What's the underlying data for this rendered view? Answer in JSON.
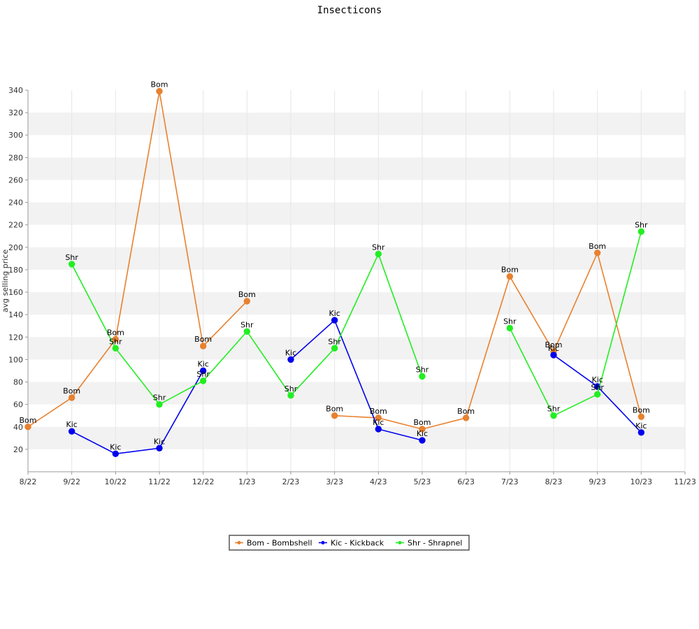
{
  "chart_data": {
    "type": "line",
    "title": "Insecticons",
    "xlabel": "",
    "ylabel": "avg selling price",
    "x": [
      "8/22",
      "9/22",
      "10/22",
      "11/22",
      "12/22",
      "1/23",
      "2/23",
      "3/23",
      "4/23",
      "5/23",
      "6/23",
      "7/23",
      "8/23",
      "9/23",
      "10/23",
      "11/23"
    ],
    "ylim": [
      0,
      340
    ],
    "yticks": [
      20,
      40,
      60,
      80,
      100,
      120,
      140,
      160,
      180,
      200,
      220,
      240,
      260,
      280,
      300,
      320,
      340
    ],
    "grid": "alternating horizontal bands",
    "legend_position": "bottom-center",
    "series": [
      {
        "name": "Bom - Bombshell",
        "point_label": "Bom",
        "color": "#e8812f",
        "values": [
          40,
          66,
          118,
          339,
          112,
          152,
          null,
          50,
          48,
          38,
          48,
          174,
          107,
          195,
          49,
          null
        ]
      },
      {
        "name": "Kic - Kickback",
        "point_label": "Kic",
        "color": "#0000ee",
        "values": [
          null,
          36,
          16,
          21,
          90,
          null,
          100,
          135,
          38,
          28,
          null,
          null,
          104,
          76,
          35,
          null
        ]
      },
      {
        "name": "Shr - Shrapnel",
        "point_label": "Shr",
        "color": "#22ee22",
        "values": [
          null,
          185,
          110,
          60,
          81,
          125,
          68,
          110,
          194,
          85,
          null,
          128,
          50,
          69,
          214,
          null
        ]
      }
    ]
  }
}
